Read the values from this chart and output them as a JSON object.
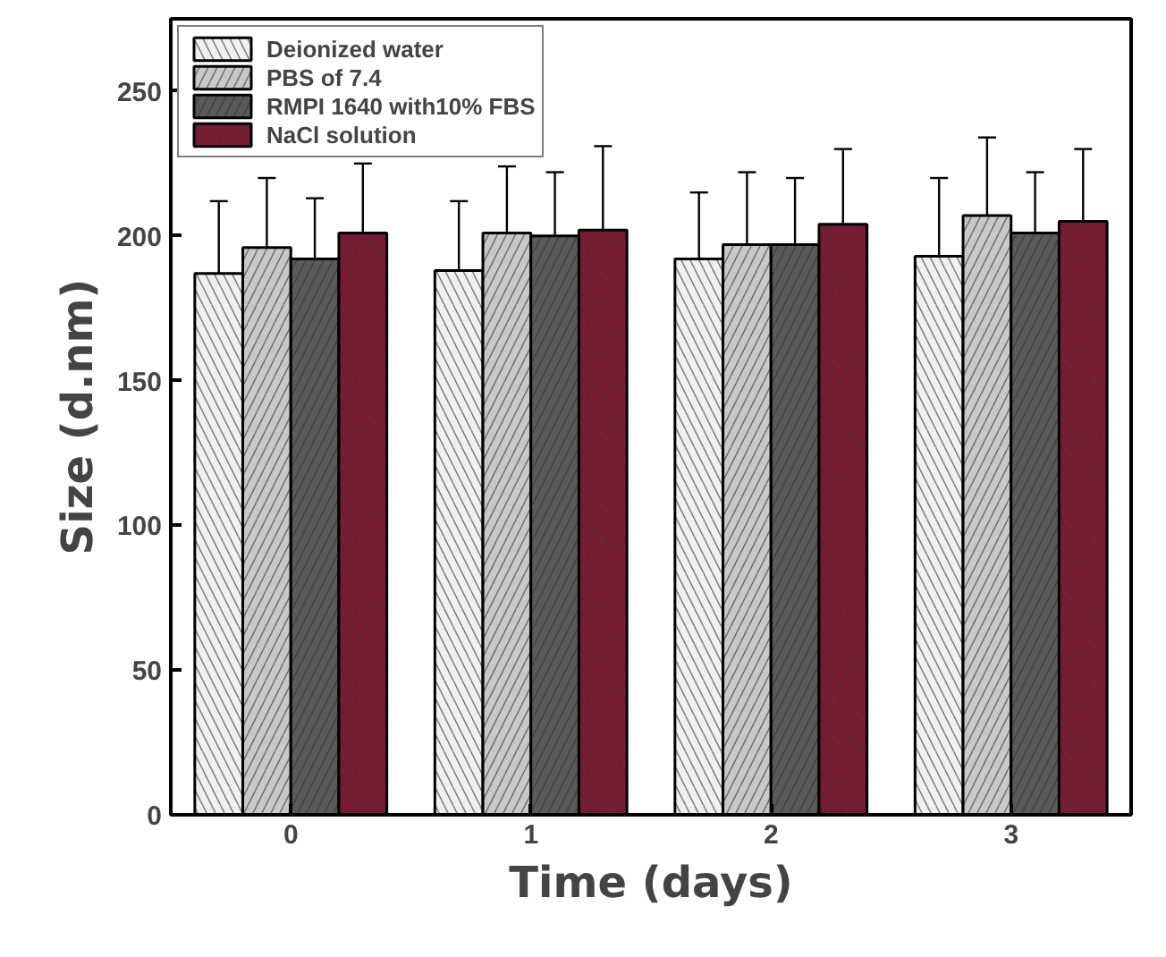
{
  "chart_data": {
    "type": "bar",
    "xlabel": "Time (days)",
    "ylabel": "Size (d.nm)",
    "categories": [
      "0",
      "1",
      "2",
      "3"
    ],
    "ylim": [
      0,
      275
    ],
    "yticks": [
      0,
      50,
      100,
      150,
      200,
      250
    ],
    "grid": false,
    "legend": "top left",
    "series": [
      {
        "name": "Deionized water",
        "color": "#f0f0f0",
        "values": [
          187,
          188,
          192,
          193
        ],
        "errors": [
          25,
          24,
          23,
          27
        ]
      },
      {
        "name": "PBS of 7.4",
        "color": "#c8c8c8",
        "values": [
          196,
          201,
          197,
          207
        ],
        "errors": [
          24,
          23,
          25,
          27
        ]
      },
      {
        "name": "RMPI 1640 with10% FBS",
        "color": "#5a5a5a",
        "values": [
          192,
          200,
          197,
          201
        ],
        "errors": [
          21,
          22,
          23,
          21
        ]
      },
      {
        "name": "NaCl solution",
        "color": "#7a1a33",
        "values": [
          201,
          202,
          204,
          205
        ],
        "errors": [
          24,
          29,
          26,
          25
        ]
      }
    ]
  }
}
